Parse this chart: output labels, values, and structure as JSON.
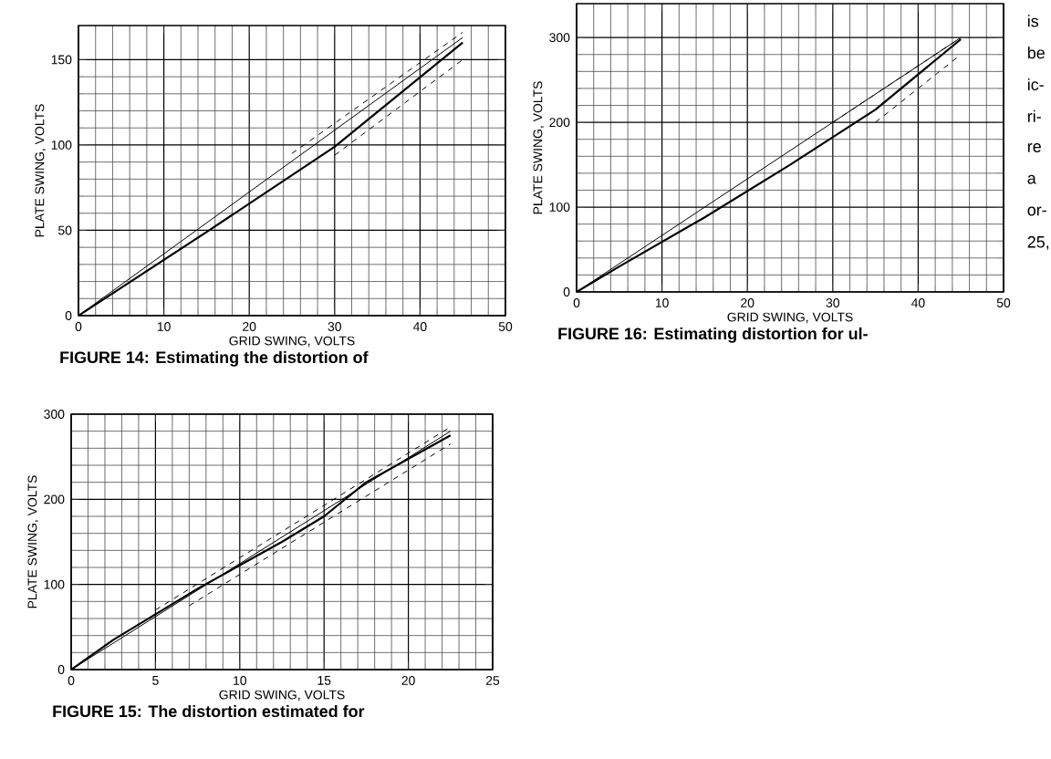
{
  "chart_data": [
    {
      "type": "line",
      "title": "FIGURE 14: Estimating the distortion of",
      "xlabel": "GRID SWING, VOLTS",
      "ylabel": "PLATE SWING, VOLTS",
      "xlim": [
        0,
        50
      ],
      "ylim": [
        0,
        170
      ],
      "xticks": [
        0,
        10,
        20,
        30,
        40,
        50
      ],
      "yticks": [
        0,
        50,
        100,
        150
      ],
      "grid": true,
      "series": [
        {
          "color": "#000000",
          "line_style": "solid",
          "x": [
            0,
            15,
            30,
            45
          ],
          "values": [
            0,
            49,
            99,
            160
          ]
        },
        {
          "color": "#000000",
          "line_style": "solid",
          "x": [
            0,
            45
          ],
          "values": [
            0,
            163
          ]
        },
        {
          "color": "#000000",
          "line_style": "dashed",
          "x": [
            25,
            45
          ],
          "values": [
            95,
            166
          ]
        },
        {
          "color": "#000000",
          "line_style": "dashed",
          "x": [
            30,
            45
          ],
          "values": [
            94,
            150
          ]
        }
      ]
    },
    {
      "type": "line",
      "title": "FIGURE 16: Estimating distortion for ul-",
      "xlabel": "GRID SWING, VOLTS",
      "ylabel": "PLATE SWING, VOLTS",
      "xlim": [
        0,
        50
      ],
      "ylim": [
        0,
        340
      ],
      "xticks": [
        0,
        10,
        20,
        30,
        40,
        50
      ],
      "yticks": [
        0,
        100,
        200,
        300
      ],
      "grid": true,
      "annotations": [
        "is",
        "be",
        "ic-",
        "ri-",
        "re",
        "a",
        "or-",
        "25,"
      ],
      "series": [
        {
          "color": "#000000",
          "line_style": "solid",
          "x": [
            0,
            5,
            15,
            25,
            35,
            45
          ],
          "values": [
            0,
            30,
            88,
            150,
            215,
            298
          ]
        },
        {
          "color": "#000000",
          "line_style": "solid",
          "x": [
            0,
            45
          ],
          "values": [
            0,
            300
          ]
        },
        {
          "color": "#000000",
          "line_style": "dashed",
          "x": [
            30,
            45
          ],
          "values": [
            200,
            300
          ]
        },
        {
          "color": "#000000",
          "line_style": "dashed",
          "x": [
            35,
            45
          ],
          "values": [
            200,
            280
          ]
        }
      ]
    },
    {
      "type": "line",
      "title": "FIGURE 15: The distortion estimated for",
      "xlabel": "GRID SWING, VOLTS",
      "ylabel": "PLATE SWING, VOLTS",
      "xlim": [
        0,
        25
      ],
      "ylim": [
        0,
        300
      ],
      "xticks": [
        0,
        5,
        10,
        15,
        20,
        25
      ],
      "yticks": [
        0,
        100,
        200,
        300
      ],
      "grid": true,
      "series": [
        {
          "color": "#000000",
          "line_style": "solid",
          "x": [
            0,
            2.5,
            7.5,
            12.5,
            15,
            17.5,
            22.5
          ],
          "values": [
            0,
            35,
            95,
            150,
            180,
            220,
            275
          ]
        },
        {
          "color": "#000000",
          "line_style": "solid",
          "x": [
            0,
            22.5
          ],
          "values": [
            0,
            280
          ]
        },
        {
          "color": "#000000",
          "line_style": "dashed",
          "x": [
            5,
            22.5
          ],
          "values": [
            70,
            285
          ]
        },
        {
          "color": "#000000",
          "line_style": "dashed",
          "x": [
            7,
            22.5
          ],
          "values": [
            75,
            265
          ]
        }
      ]
    }
  ]
}
